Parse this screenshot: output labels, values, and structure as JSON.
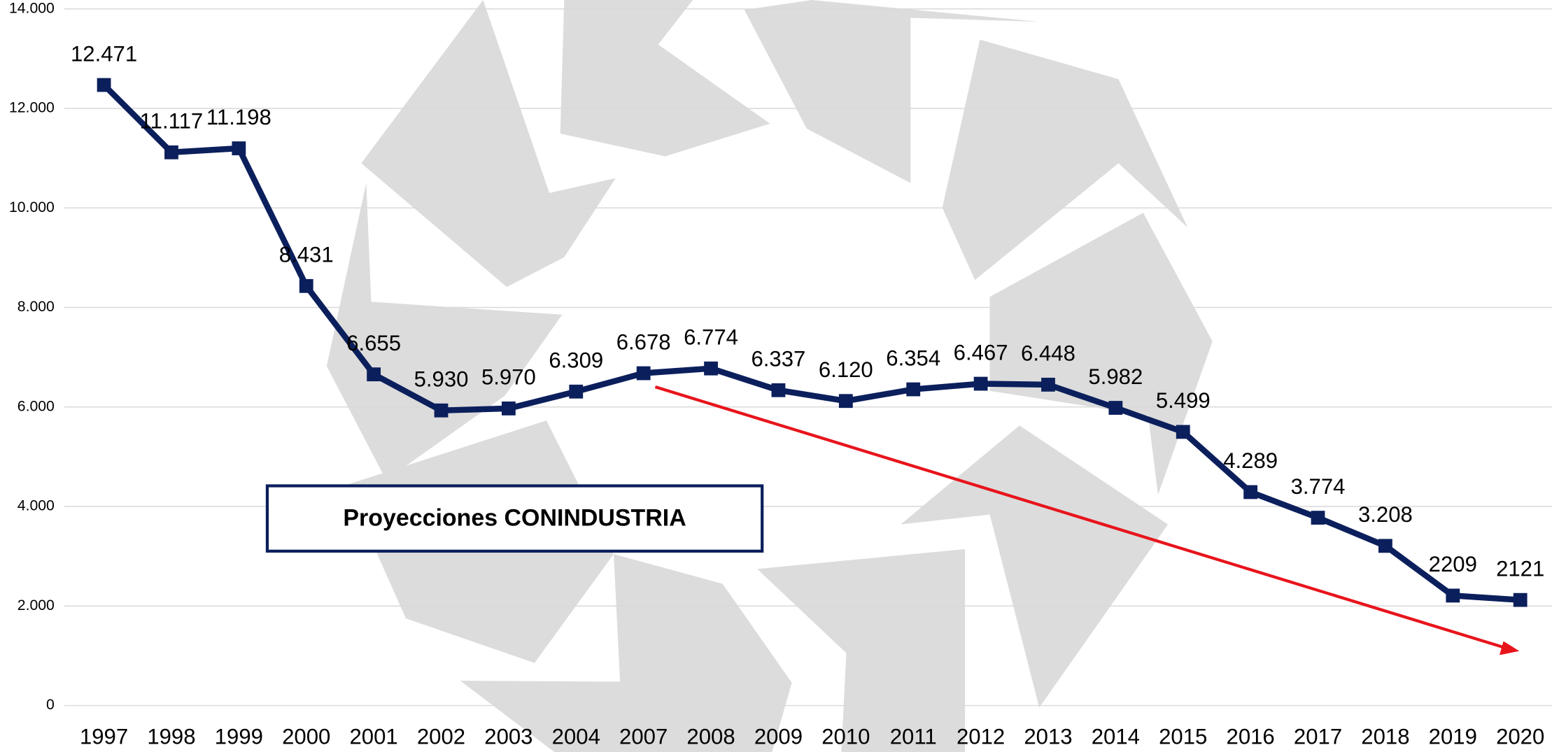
{
  "chart_data": {
    "type": "line",
    "categories": [
      "1997",
      "1998",
      "1999",
      "2000",
      "2001",
      "2002",
      "2003",
      "2004",
      "2007",
      "2008",
      "2009",
      "2010",
      "2011",
      "2012",
      "2013",
      "2014",
      "2015",
      "2016",
      "2017",
      "2018",
      "2019",
      "2020"
    ],
    "series": [
      {
        "name": null,
        "color": "#0b1f5c",
        "values": [
          12471,
          11117,
          11198,
          8431,
          6655,
          5930,
          5970,
          6309,
          6678,
          6774,
          6337,
          6120,
          6354,
          6467,
          6448,
          5982,
          5499,
          4289,
          3774,
          3208,
          2209,
          2121
        ],
        "value_labels": [
          "12.471",
          "11.117",
          "11.198",
          "8.431",
          "6.655",
          "5.930",
          "5.970",
          "6.309",
          "6.678",
          "6.774",
          "6.337",
          "6.120",
          "6.354",
          "6.467",
          "6.448",
          "5.982",
          "5.499",
          "4.289",
          "3.774",
          "3.208",
          "2209",
          "2121"
        ]
      }
    ],
    "ylim": [
      0,
      14000
    ],
    "yticks": [
      0,
      {
        "value": 2000,
        "label": "2.000"
      },
      {
        "value": 4000,
        "label": "4.000"
      },
      {
        "value": 6000,
        "label": "6.000"
      },
      {
        "value": 8000,
        "label": "8.000"
      },
      {
        "value": 10000,
        "label": "10.000"
      },
      {
        "value": 12000,
        "label": "12.000"
      },
      {
        "value": 14000,
        "label": "14.000"
      }
    ],
    "grid": true,
    "annotation": "Proyecciones CONINDUSTRIA"
  }
}
